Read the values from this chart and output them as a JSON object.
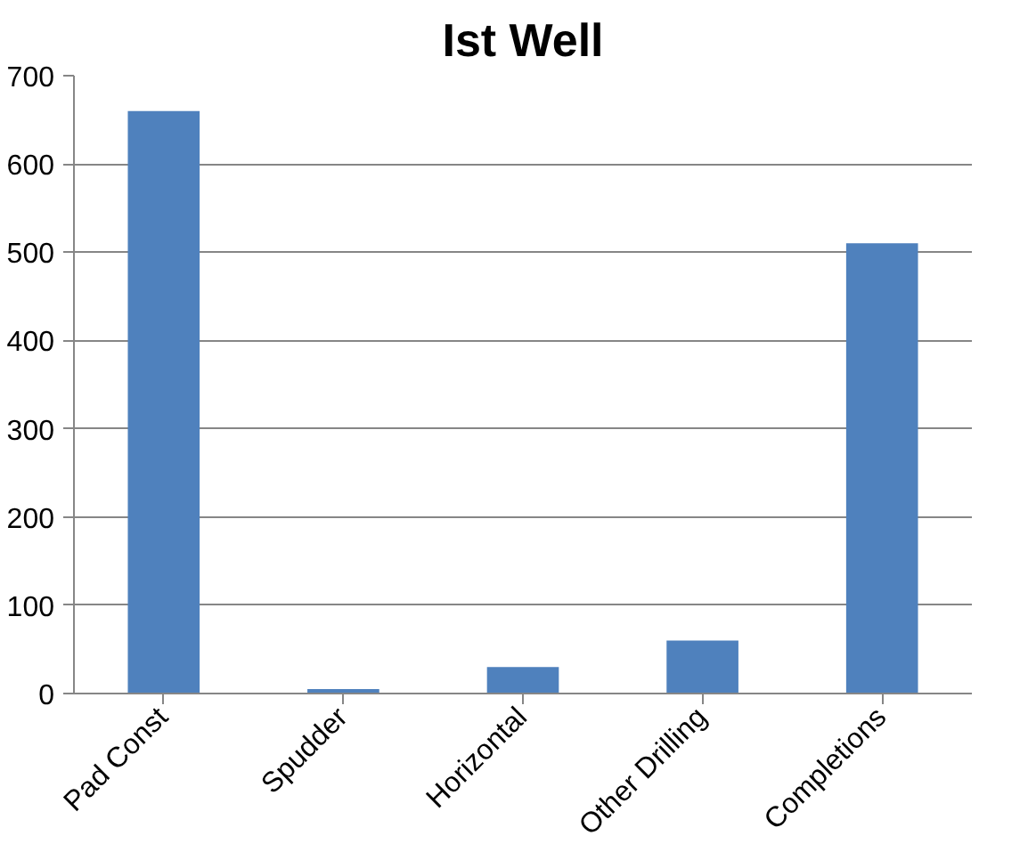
{
  "chart_data": {
    "type": "bar",
    "title": "Ist Well",
    "categories": [
      "Pad Const",
      "Spudder",
      "Horizontal",
      "Other Drilling",
      "Completions"
    ],
    "values": [
      660,
      5,
      30,
      60,
      510
    ],
    "color": "#4f81bd",
    "ylim": [
      0,
      700
    ],
    "yticks": [
      0,
      100,
      200,
      300,
      400,
      500,
      600,
      700
    ],
    "grid": "y"
  }
}
